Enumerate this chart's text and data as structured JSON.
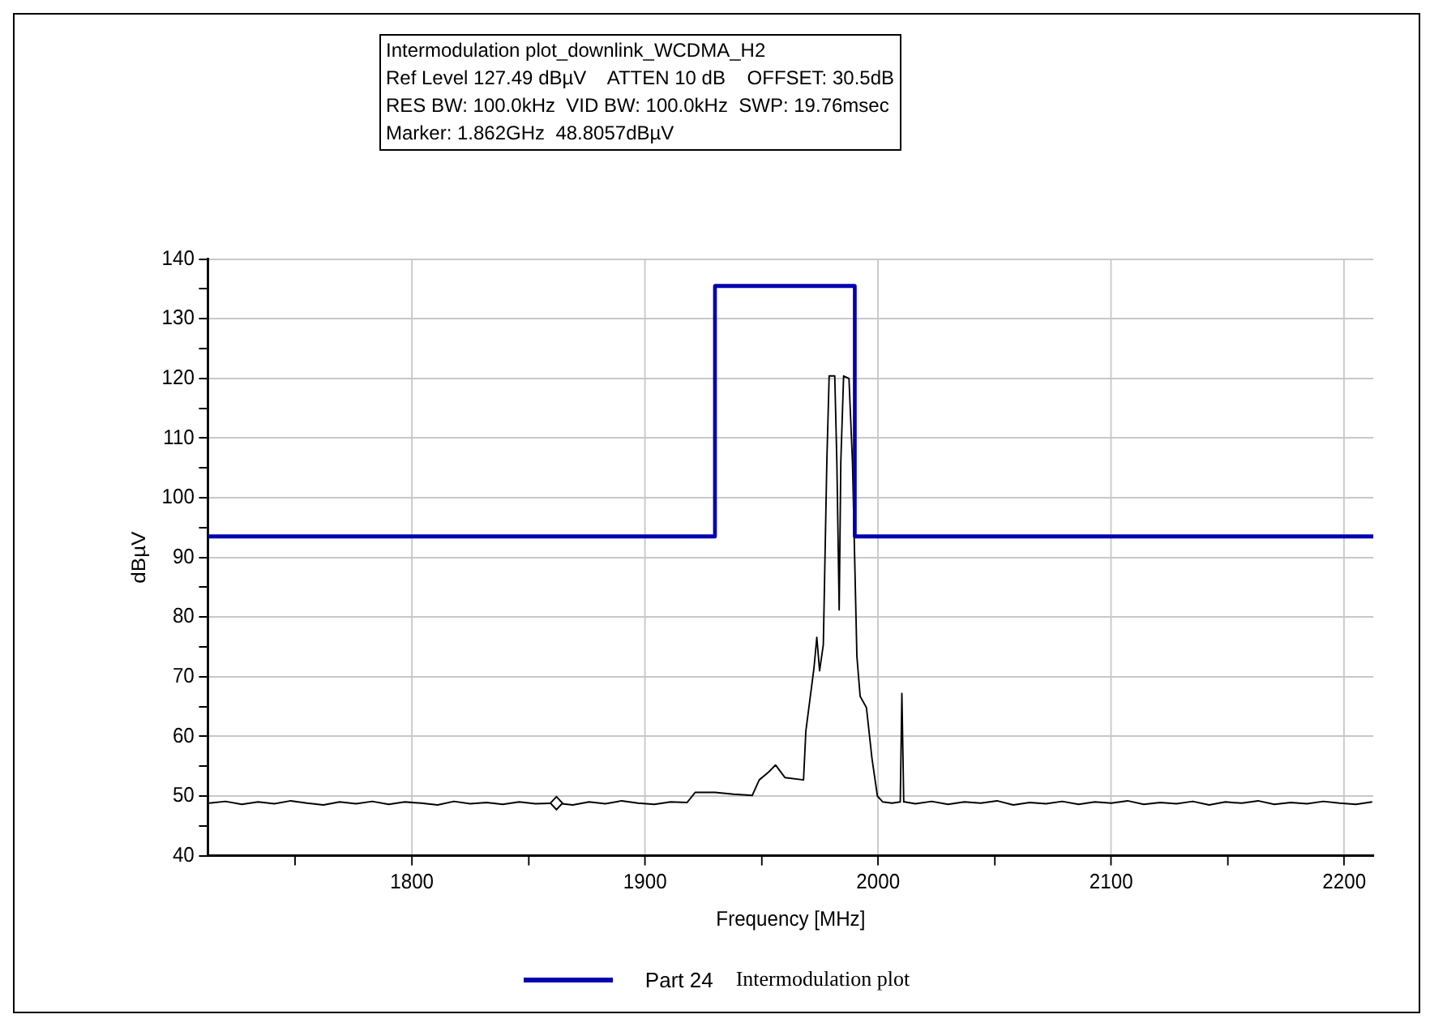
{
  "chart_data": {
    "type": "line",
    "title": "Intermodulation plot_downlink_WCDMA_H2",
    "annotations": [
      "Ref Level 127.49 dBµV    ATTEN 10 dB    OFFSET: 30.5dB",
      "RES BW: 100.0kHz  VID BW: 100.0kHz  SWP: 19.76msec",
      "Marker: 1.862GHz  48.8057dBµV"
    ],
    "xlabel": "Frequency [MHz]",
    "ylabel": "dBµV",
    "legend_title": "Intermodulation plot",
    "legend": "bottom",
    "grid": true,
    "marker": "none",
    "line_style": "solid",
    "xlim": [
      1712.5,
      2212.5
    ],
    "ylim": [
      40,
      140
    ],
    "xticks": [
      {
        "value": 1750,
        "label": null
      },
      1800,
      {
        "value": 1850,
        "label": null
      },
      1900,
      {
        "value": 1950,
        "label": null
      },
      2000,
      {
        "value": 2050,
        "label": null
      },
      2100,
      {
        "value": 2150,
        "label": null
      },
      2200
    ],
    "yticks": [
      40,
      {
        "value": 45,
        "label": null
      },
      50,
      {
        "value": 55,
        "label": null
      },
      60,
      {
        "value": 65,
        "label": null
      },
      70,
      {
        "value": 75,
        "label": null
      },
      80,
      {
        "value": 85,
        "label": null
      },
      90,
      {
        "value": 95,
        "label": null
      },
      100,
      {
        "value": 105,
        "label": null
      },
      110,
      {
        "value": 115,
        "label": null
      },
      120,
      {
        "value": 125,
        "label": null
      },
      130,
      {
        "value": 135,
        "label": null
      },
      140
    ],
    "series": [
      {
        "type": "scatter",
        "marker": "diamond",
        "color": "#000000",
        "x": [
          1862
        ],
        "values": [
          48.8
        ]
      },
      {
        "name": "Part 24",
        "color": "#0000b0",
        "x": [
          1712.5,
          1930,
          1930,
          1990,
          1990,
          2212.5
        ],
        "values": [
          93.5,
          93.5,
          135.5,
          135.5,
          93.5,
          93.5
        ]
      },
      {
        "color": "#000000",
        "x": [
          1713,
          1720,
          1727,
          1734,
          1741,
          1748,
          1755,
          1762,
          1769,
          1776,
          1783,
          1790,
          1797,
          1804,
          1811,
          1818,
          1825,
          1832,
          1839,
          1846,
          1853,
          1862,
          1869,
          1876,
          1883,
          1890,
          1897,
          1904,
          1911,
          1918,
          1921.5,
          1930,
          1938,
          1946,
          1949,
          1953,
          1956,
          1960,
          1968,
          1969,
          1972.5,
          1973.7,
          1974.9,
          1976.5,
          1978,
          1979,
          1981.4,
          1982.3,
          1983.3,
          1984,
          1985.2,
          1987.5,
          1989,
          1990.9,
          1992.3,
          1995,
          1997.4,
          1999.7,
          2002,
          2006,
          2009.5,
          2010.2,
          2011,
          2011.4,
          2016,
          2023,
          2030,
          2037,
          2044,
          2051,
          2058,
          2065,
          2072,
          2079,
          2086,
          2093,
          2100,
          2107,
          2114,
          2121,
          2128,
          2135,
          2142,
          2149,
          2156,
          2163,
          2170,
          2177,
          2184,
          2191,
          2198,
          2205,
          2212
        ],
        "values": [
          48.8,
          49.1,
          48.6,
          49.0,
          48.7,
          49.2,
          48.8,
          48.5,
          49.0,
          48.7,
          49.1,
          48.6,
          49.0,
          48.8,
          48.5,
          49.1,
          48.7,
          48.9,
          48.6,
          49.0,
          48.7,
          48.8,
          48.5,
          49.0,
          48.7,
          49.2,
          48.8,
          48.6,
          49.0,
          48.9,
          50.6,
          50.6,
          50.3,
          50.1,
          52.7,
          54,
          55.2,
          53.1,
          52.7,
          60.9,
          71.5,
          76.6,
          71,
          75.4,
          106,
          120.4,
          120.4,
          106,
          81.2,
          106,
          120.4,
          120,
          106,
          73.4,
          66.7,
          64.8,
          56.2,
          50,
          49,
          48.8,
          49,
          67.2,
          49,
          49,
          48.7,
          49.1,
          48.6,
          49.0,
          48.8,
          49.2,
          48.5,
          48.9,
          48.7,
          49.1,
          48.6,
          49.0,
          48.8,
          49.2,
          48.6,
          48.9,
          48.7,
          49.1,
          48.5,
          49.0,
          48.8,
          49.2,
          48.6,
          48.9,
          48.7,
          49.1,
          48.8,
          48.6,
          49.0
        ]
      }
    ]
  }
}
